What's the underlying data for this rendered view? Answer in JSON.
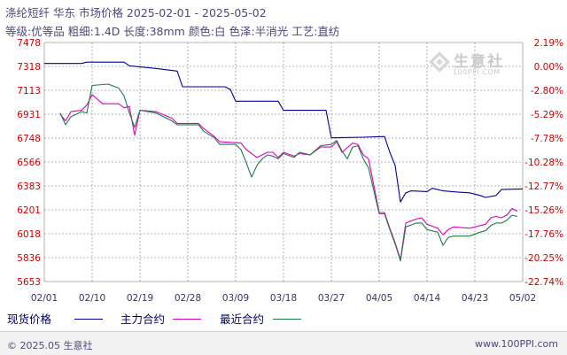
{
  "header": {
    "title": "涤纶短纤 华东 市场价格 2025-02-01 - 2025-05-02",
    "subtitle": "等级:优等品 粗细:1.4D 长度:38mm 颜色:白 色泽:半消光 工艺:直纺"
  },
  "watermark": {
    "brand": "生意社",
    "url": "100PPI.COM"
  },
  "footer": {
    "copyright": "© 2025.05 生意社",
    "site": "www.100PPI.com"
  },
  "colors": {
    "spot": "#000099",
    "main_contract": "#e000c0",
    "nearest_contract": "#207a45",
    "grid": "#9a9aaa",
    "axis_text": "#cc0000",
    "right_axis_text": "#cc0000"
  },
  "chart_data": {
    "type": "line",
    "title": "涤纶短纤 华东 市场价格 2025-02-01 - 2025-05-02",
    "x_ticks": [
      "02/01",
      "02/10",
      "02/19",
      "02/28",
      "03/09",
      "03/18",
      "03/27",
      "04/05",
      "04/14",
      "04/23",
      "05/02"
    ],
    "y_ticks_left": [
      "7478",
      "7318",
      "7113",
      "6931",
      "6748",
      "6566",
      "6383",
      "6201",
      "6018",
      "5836",
      "5653"
    ],
    "y_ticks_right": [
      "2.19%",
      "0.00%",
      "-2.80%",
      "-5.29%",
      "-7.78%",
      "-10.28%",
      "-12.77%",
      "-15.26%",
      "-17.76%",
      "-20.25%",
      "-22.74%"
    ],
    "ylim": [
      5653,
      7478
    ],
    "xlim": [
      "2025-02-01",
      "2025-05-02"
    ],
    "grid": true,
    "legend_position": "bottom",
    "series": [
      {
        "name": "现货价格",
        "color_key": "spot",
        "points": [
          [
            "2025-02-01",
            7318
          ],
          [
            "2025-02-08",
            7318
          ],
          [
            "2025-02-09",
            7328
          ],
          [
            "2025-02-16",
            7328
          ],
          [
            "2025-02-17",
            7300
          ],
          [
            "2025-02-22",
            7280
          ],
          [
            "2025-02-26",
            7260
          ],
          [
            "2025-02-27",
            7140
          ],
          [
            "2025-03-07",
            7140
          ],
          [
            "2025-03-08",
            7120
          ],
          [
            "2025-03-09",
            7030
          ],
          [
            "2025-03-17",
            7030
          ],
          [
            "2025-03-18",
            6960
          ],
          [
            "2025-03-26",
            6960
          ],
          [
            "2025-03-27",
            6750
          ],
          [
            "2025-04-02",
            6755
          ],
          [
            "2025-04-06",
            6760
          ],
          [
            "2025-04-07",
            6640
          ],
          [
            "2025-04-08",
            6540
          ],
          [
            "2025-04-09",
            6260
          ],
          [
            "2025-04-10",
            6330
          ],
          [
            "2025-04-11",
            6345
          ],
          [
            "2025-04-14",
            6340
          ],
          [
            "2025-04-15",
            6365
          ],
          [
            "2025-04-17",
            6345
          ],
          [
            "2025-04-20",
            6335
          ],
          [
            "2025-04-22",
            6330
          ],
          [
            "2025-04-24",
            6310
          ],
          [
            "2025-04-25",
            6295
          ],
          [
            "2025-04-27",
            6310
          ],
          [
            "2025-04-28",
            6355
          ],
          [
            "2025-05-02",
            6360
          ]
        ]
      },
      {
        "name": "主力合约",
        "color_key": "main_contract",
        "points": [
          [
            "2025-02-04",
            6930
          ],
          [
            "2025-02-05",
            6880
          ],
          [
            "2025-02-06",
            6950
          ],
          [
            "2025-02-08",
            6960
          ],
          [
            "2025-02-09",
            7000
          ],
          [
            "2025-02-10",
            7080
          ],
          [
            "2025-02-12",
            7010
          ],
          [
            "2025-02-15",
            7010
          ],
          [
            "2025-02-16",
            6980
          ],
          [
            "2025-02-17",
            6990
          ],
          [
            "2025-02-18",
            6770
          ],
          [
            "2025-02-19",
            6960
          ],
          [
            "2025-02-22",
            6950
          ],
          [
            "2025-02-25",
            6900
          ],
          [
            "2025-02-26",
            6860
          ],
          [
            "2025-03-02",
            6860
          ],
          [
            "2025-03-03",
            6820
          ],
          [
            "2025-03-05",
            6760
          ],
          [
            "2025-03-06",
            6720
          ],
          [
            "2025-03-10",
            6710
          ],
          [
            "2025-03-11",
            6660
          ],
          [
            "2025-03-13",
            6600
          ],
          [
            "2025-03-15",
            6640
          ],
          [
            "2025-03-16",
            6640
          ],
          [
            "2025-03-17",
            6600
          ],
          [
            "2025-03-18",
            6640
          ],
          [
            "2025-03-20",
            6610
          ],
          [
            "2025-03-21",
            6630
          ],
          [
            "2025-03-23",
            6620
          ],
          [
            "2025-03-25",
            6680
          ],
          [
            "2025-03-27",
            6680
          ],
          [
            "2025-03-28",
            6720
          ],
          [
            "2025-03-29",
            6640
          ],
          [
            "2025-03-31",
            6710
          ],
          [
            "2025-04-01",
            6700
          ],
          [
            "2025-04-02",
            6620
          ],
          [
            "2025-04-03",
            6590
          ],
          [
            "2025-04-05",
            6180
          ],
          [
            "2025-04-06",
            6180
          ],
          [
            "2025-04-07",
            6060
          ],
          [
            "2025-04-08",
            5950
          ],
          [
            "2025-04-09",
            5820
          ],
          [
            "2025-04-10",
            6100
          ],
          [
            "2025-04-12",
            6130
          ],
          [
            "2025-04-13",
            6140
          ],
          [
            "2025-04-14",
            6090
          ],
          [
            "2025-04-16",
            6060
          ],
          [
            "2025-04-17",
            6010
          ],
          [
            "2025-04-18",
            6050
          ],
          [
            "2025-04-19",
            6070
          ],
          [
            "2025-04-22",
            6060
          ],
          [
            "2025-04-24",
            6080
          ],
          [
            "2025-04-25",
            6090
          ],
          [
            "2025-04-26",
            6140
          ],
          [
            "2025-04-27",
            6150
          ],
          [
            "2025-04-28",
            6140
          ],
          [
            "2025-04-29",
            6160
          ],
          [
            "2025-04-30",
            6210
          ],
          [
            "2025-05-01",
            6190
          ]
        ]
      },
      {
        "name": "最近合约",
        "color_key": "nearest_contract",
        "points": [
          [
            "2025-02-04",
            6940
          ],
          [
            "2025-02-05",
            6850
          ],
          [
            "2025-02-06",
            6910
          ],
          [
            "2025-02-08",
            6950
          ],
          [
            "2025-02-09",
            6940
          ],
          [
            "2025-02-10",
            7150
          ],
          [
            "2025-02-13",
            7160
          ],
          [
            "2025-02-15",
            7130
          ],
          [
            "2025-02-16",
            7070
          ],
          [
            "2025-02-17",
            6940
          ],
          [
            "2025-02-18",
            6830
          ],
          [
            "2025-02-19",
            6960
          ],
          [
            "2025-02-22",
            6940
          ],
          [
            "2025-02-25",
            6880
          ],
          [
            "2025-02-26",
            6850
          ],
          [
            "2025-03-02",
            6850
          ],
          [
            "2025-03-03",
            6800
          ],
          [
            "2025-03-05",
            6750
          ],
          [
            "2025-03-06",
            6700
          ],
          [
            "2025-03-09",
            6700
          ],
          [
            "2025-03-10",
            6660
          ],
          [
            "2025-03-11",
            6560
          ],
          [
            "2025-03-12",
            6450
          ],
          [
            "2025-03-13",
            6540
          ],
          [
            "2025-03-14",
            6590
          ],
          [
            "2025-03-15",
            6620
          ],
          [
            "2025-03-16",
            6610
          ],
          [
            "2025-03-17",
            6590
          ],
          [
            "2025-03-18",
            6630
          ],
          [
            "2025-03-20",
            6600
          ],
          [
            "2025-03-21",
            6640
          ],
          [
            "2025-03-23",
            6620
          ],
          [
            "2025-03-25",
            6690
          ],
          [
            "2025-03-27",
            6700
          ],
          [
            "2025-03-28",
            6730
          ],
          [
            "2025-03-29",
            6650
          ],
          [
            "2025-03-30",
            6590
          ],
          [
            "2025-03-31",
            6680
          ],
          [
            "2025-04-01",
            6690
          ],
          [
            "2025-04-02",
            6590
          ],
          [
            "2025-04-03",
            6520
          ],
          [
            "2025-04-05",
            6170
          ],
          [
            "2025-04-06",
            6170
          ],
          [
            "2025-04-07",
            6050
          ],
          [
            "2025-04-08",
            5940
          ],
          [
            "2025-04-09",
            5810
          ],
          [
            "2025-04-10",
            6070
          ],
          [
            "2025-04-12",
            6100
          ],
          [
            "2025-04-13",
            6100
          ],
          [
            "2025-04-14",
            6050
          ],
          [
            "2025-04-16",
            6030
          ],
          [
            "2025-04-17",
            5930
          ],
          [
            "2025-04-18",
            5990
          ],
          [
            "2025-04-19",
            6000
          ],
          [
            "2025-04-22",
            6000
          ],
          [
            "2025-04-24",
            6030
          ],
          [
            "2025-04-25",
            6040
          ],
          [
            "2025-04-26",
            6080
          ],
          [
            "2025-04-27",
            6100
          ],
          [
            "2025-04-28",
            6100
          ],
          [
            "2025-04-29",
            6120
          ],
          [
            "2025-04-30",
            6160
          ],
          [
            "2025-05-01",
            6150
          ]
        ]
      }
    ]
  }
}
